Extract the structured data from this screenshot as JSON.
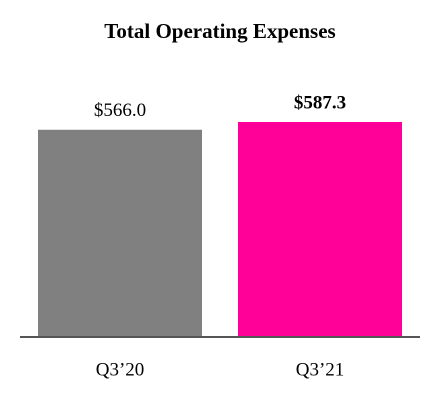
{
  "chart_data": {
    "type": "bar",
    "title": "Total Operating Expenses",
    "categories": [
      "Q3’20",
      "Q3’21"
    ],
    "values": [
      566.0,
      587.3
    ],
    "value_labels": [
      "$566.0",
      "$587.3"
    ],
    "colors": [
      "#808080",
      "#ff0099"
    ]
  }
}
